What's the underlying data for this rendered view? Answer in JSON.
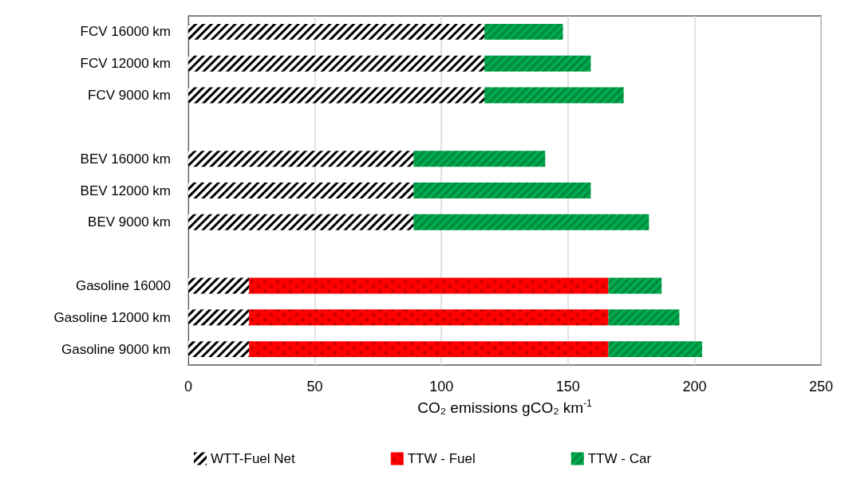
{
  "chart_data": {
    "type": "bar",
    "orientation": "horizontal",
    "stacked": true,
    "categories": [
      "FCV 16000 km",
      "FCV 12000 km",
      "FCV 9000 km",
      null,
      "BEV 16000 km",
      "BEV 12000 km",
      "BEV 9000 km",
      null,
      "Gasoline 16000",
      "Gasoline 12000 km",
      "Gasoline 9000 km"
    ],
    "series": [
      {
        "name": "WTT-Fuel Net",
        "color": "#000000",
        "values": [
          117,
          117,
          117,
          null,
          89,
          89,
          89,
          null,
          24,
          24,
          24
        ]
      },
      {
        "name": "TTW - Fuel",
        "color": "#ff0000",
        "values": [
          null,
          null,
          null,
          null,
          null,
          null,
          null,
          null,
          142,
          142,
          142
        ]
      },
      {
        "name": "TTW - Car",
        "color": "#00b050",
        "values": [
          31,
          42,
          55,
          null,
          52,
          70,
          93,
          null,
          21,
          28,
          37
        ]
      }
    ],
    "xlabel": "CO₂ emissions gCO₂ km$^{-1}$",
    "xlim": [
      0,
      250
    ],
    "xticks": [
      0,
      50,
      100,
      150,
      200,
      250
    ],
    "grid": "x",
    "legend": "bottom"
  }
}
